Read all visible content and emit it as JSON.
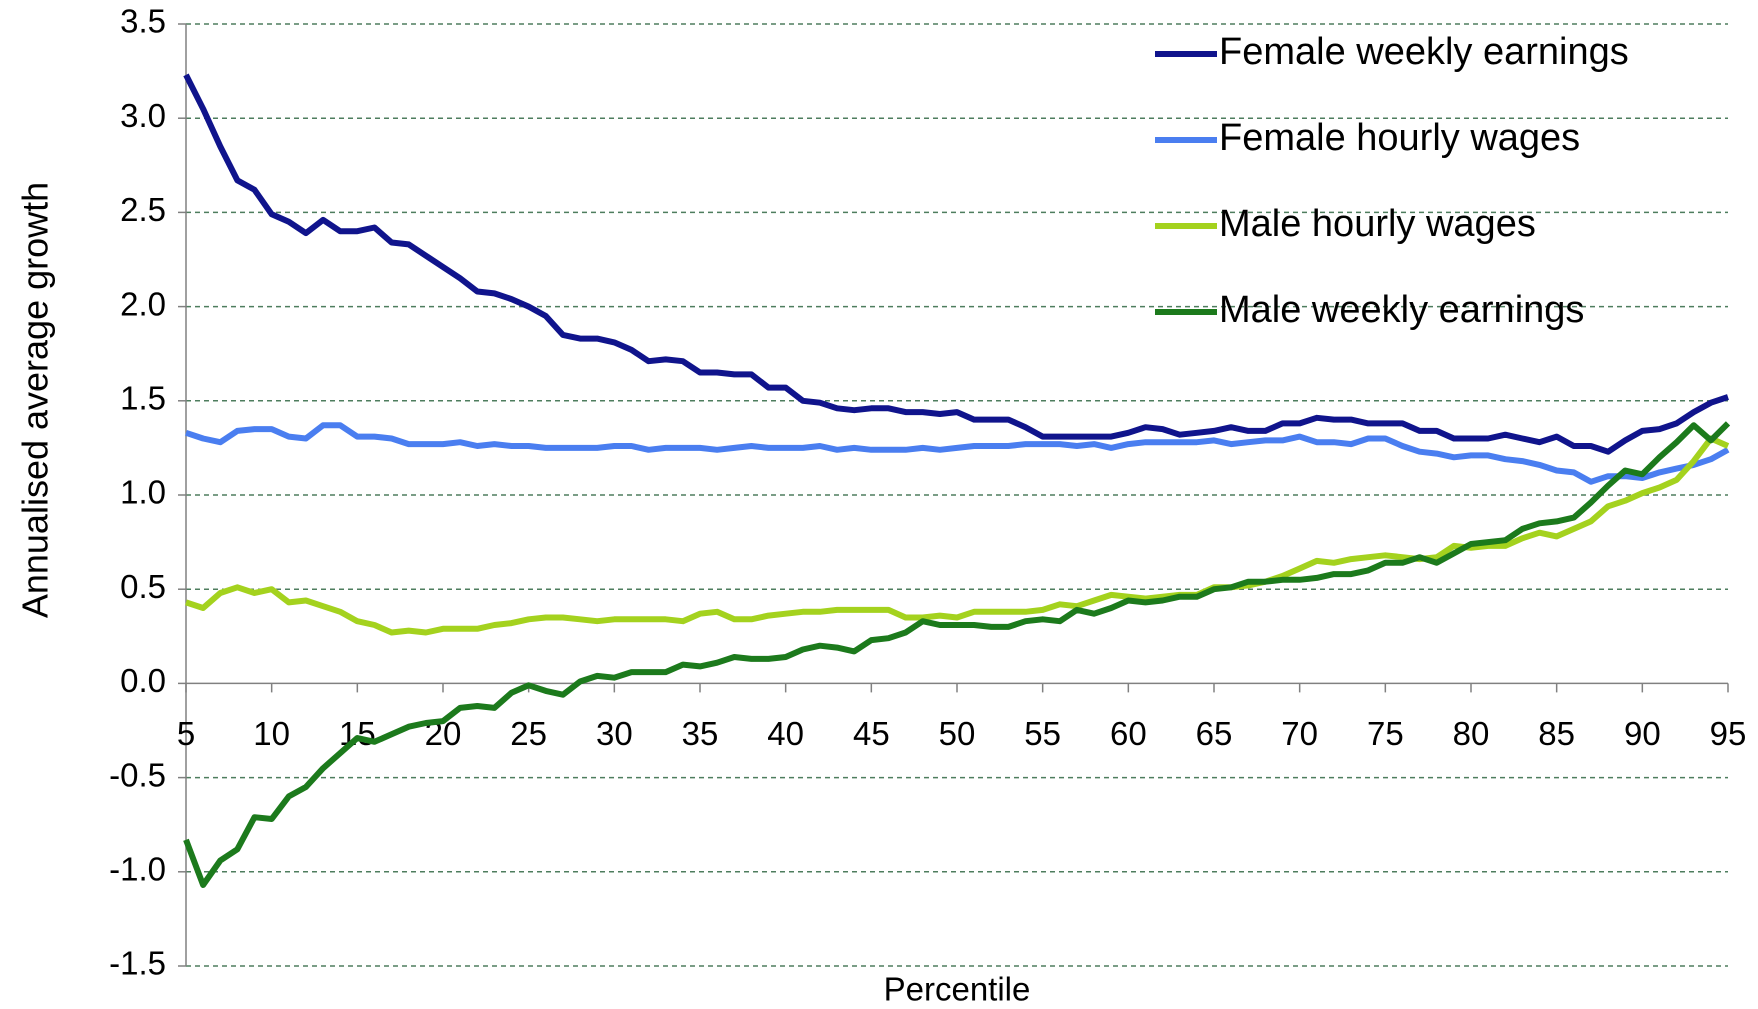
{
  "chart_data": {
    "type": "line",
    "x_label": "Percentile",
    "y_label": "Annualised average growth",
    "x": [
      5,
      6,
      7,
      8,
      9,
      10,
      11,
      12,
      13,
      14,
      15,
      16,
      17,
      18,
      19,
      20,
      21,
      22,
      23,
      24,
      25,
      26,
      27,
      28,
      29,
      30,
      31,
      32,
      33,
      34,
      35,
      36,
      37,
      38,
      39,
      40,
      41,
      42,
      43,
      44,
      45,
      46,
      47,
      48,
      49,
      50,
      51,
      52,
      53,
      54,
      55,
      56,
      57,
      58,
      59,
      60,
      61,
      62,
      63,
      64,
      65,
      66,
      67,
      68,
      69,
      70,
      71,
      72,
      73,
      74,
      75,
      76,
      77,
      78,
      79,
      80,
      81,
      82,
      83,
      84,
      85,
      86,
      87,
      88,
      89,
      90,
      91,
      92,
      93,
      94,
      95
    ],
    "xlim": [
      5,
      95
    ],
    "xticks": [
      5,
      10,
      15,
      20,
      25,
      30,
      35,
      40,
      45,
      50,
      55,
      60,
      65,
      70,
      75,
      80,
      85,
      90,
      95
    ],
    "ylim": [
      -1.5,
      3.5
    ],
    "yticks": [
      3.5,
      {
        "value": 3,
        "label": "3.0"
      },
      2.5,
      {
        "value": 2,
        "label": "2.0"
      },
      1.5,
      {
        "value": 1,
        "label": "1.0"
      },
      0.5,
      {
        "value": 0,
        "label": "0.0"
      },
      -0.5,
      {
        "value": -1,
        "label": "-1.0"
      },
      -1.5
    ],
    "grid": true,
    "legend": "top-right",
    "series": [
      {
        "name": "Female weekly earnings",
        "color": "#10148c",
        "values": [
          3.23,
          3.05,
          2.85,
          2.67,
          2.62,
          2.49,
          2.45,
          2.39,
          2.46,
          2.4,
          2.4,
          2.42,
          2.34,
          2.33,
          2.27,
          2.21,
          2.15,
          2.08,
          2.07,
          2.04,
          2.0,
          1.95,
          1.85,
          1.83,
          1.83,
          1.81,
          1.77,
          1.71,
          1.72,
          1.71,
          1.65,
          1.65,
          1.64,
          1.64,
          1.57,
          1.57,
          1.5,
          1.49,
          1.46,
          1.45,
          1.46,
          1.46,
          1.44,
          1.44,
          1.43,
          1.44,
          1.4,
          1.4,
          1.4,
          1.36,
          1.31,
          1.31,
          1.31,
          1.31,
          1.31,
          1.33,
          1.36,
          1.35,
          1.32,
          1.33,
          1.34,
          1.36,
          1.34,
          1.34,
          1.38,
          1.38,
          1.41,
          1.4,
          1.4,
          1.38,
          1.38,
          1.38,
          1.34,
          1.34,
          1.3,
          1.3,
          1.3,
          1.32,
          1.3,
          1.28,
          1.31,
          1.26,
          1.26,
          1.23,
          1.29,
          1.34,
          1.35,
          1.38,
          1.44,
          1.49,
          1.52
        ]
      },
      {
        "name": "Female hourly wages",
        "color": "#4a7ef0",
        "values": [
          1.33,
          1.3,
          1.28,
          1.34,
          1.35,
          1.35,
          1.31,
          1.3,
          1.37,
          1.37,
          1.31,
          1.31,
          1.3,
          1.27,
          1.27,
          1.27,
          1.28,
          1.26,
          1.27,
          1.26,
          1.26,
          1.25,
          1.25,
          1.25,
          1.25,
          1.26,
          1.26,
          1.24,
          1.25,
          1.25,
          1.25,
          1.24,
          1.25,
          1.26,
          1.25,
          1.25,
          1.25,
          1.26,
          1.24,
          1.25,
          1.24,
          1.24,
          1.24,
          1.25,
          1.24,
          1.25,
          1.26,
          1.26,
          1.26,
          1.27,
          1.27,
          1.27,
          1.26,
          1.27,
          1.25,
          1.27,
          1.28,
          1.28,
          1.28,
          1.28,
          1.29,
          1.27,
          1.28,
          1.29,
          1.29,
          1.31,
          1.28,
          1.28,
          1.27,
          1.3,
          1.3,
          1.26,
          1.23,
          1.22,
          1.2,
          1.21,
          1.21,
          1.19,
          1.18,
          1.16,
          1.13,
          1.12,
          1.07,
          1.1,
          1.1,
          1.09,
          1.12,
          1.14,
          1.16,
          1.19,
          1.24
        ]
      },
      {
        "name": "Male hourly wages",
        "color": "#a4d21e",
        "values": [
          0.43,
          0.4,
          0.48,
          0.51,
          0.48,
          0.5,
          0.43,
          0.44,
          0.41,
          0.38,
          0.33,
          0.31,
          0.27,
          0.28,
          0.27,
          0.29,
          0.29,
          0.29,
          0.31,
          0.32,
          0.34,
          0.35,
          0.35,
          0.34,
          0.33,
          0.34,
          0.34,
          0.34,
          0.34,
          0.33,
          0.37,
          0.38,
          0.34,
          0.34,
          0.36,
          0.37,
          0.38,
          0.38,
          0.39,
          0.39,
          0.39,
          0.39,
          0.35,
          0.35,
          0.36,
          0.35,
          0.38,
          0.38,
          0.38,
          0.38,
          0.39,
          0.42,
          0.41,
          0.44,
          0.47,
          0.46,
          0.45,
          0.46,
          0.47,
          0.47,
          0.51,
          0.51,
          0.52,
          0.54,
          0.57,
          0.61,
          0.65,
          0.64,
          0.66,
          0.67,
          0.68,
          0.67,
          0.66,
          0.67,
          0.73,
          0.72,
          0.73,
          0.73,
          0.77,
          0.8,
          0.78,
          0.82,
          0.86,
          0.94,
          0.97,
          1.01,
          1.04,
          1.08,
          1.18,
          1.3,
          1.26
        ]
      },
      {
        "name": "Male weekly earnings",
        "color": "#1c7a1c",
        "values": [
          -0.83,
          -1.07,
          -0.94,
          -0.88,
          -0.71,
          -0.72,
          -0.6,
          -0.55,
          -0.45,
          -0.37,
          -0.29,
          -0.31,
          -0.27,
          -0.23,
          -0.21,
          -0.2,
          -0.13,
          -0.12,
          -0.13,
          -0.05,
          -0.01,
          -0.04,
          -0.06,
          0.01,
          0.04,
          0.03,
          0.06,
          0.06,
          0.06,
          0.1,
          0.09,
          0.11,
          0.14,
          0.13,
          0.13,
          0.14,
          0.18,
          0.2,
          0.19,
          0.17,
          0.23,
          0.24,
          0.27,
          0.33,
          0.31,
          0.31,
          0.31,
          0.3,
          0.3,
          0.33,
          0.34,
          0.33,
          0.39,
          0.37,
          0.4,
          0.44,
          0.43,
          0.44,
          0.46,
          0.46,
          0.5,
          0.51,
          0.54,
          0.54,
          0.55,
          0.55,
          0.56,
          0.58,
          0.58,
          0.6,
          0.64,
          0.64,
          0.67,
          0.64,
          0.69,
          0.74,
          0.75,
          0.76,
          0.82,
          0.85,
          0.86,
          0.88,
          0.96,
          1.05,
          1.13,
          1.11,
          1.2,
          1.28,
          1.37,
          1.29,
          1.38
        ]
      }
    ]
  }
}
